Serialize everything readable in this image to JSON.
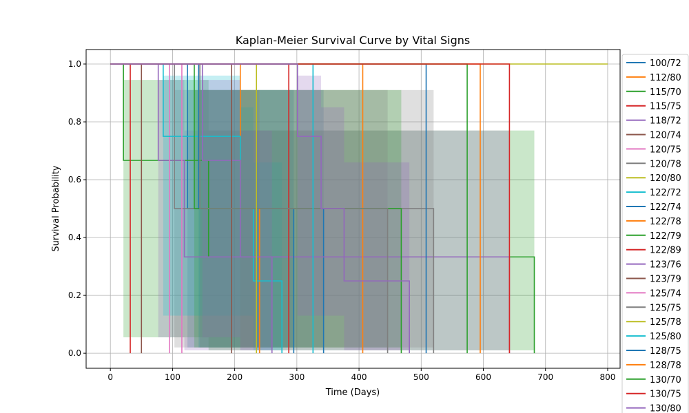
{
  "chart_data": {
    "type": "line",
    "subtype": "kaplan-meier-step",
    "title": "Kaplan-Meier Survival Curve by Vital Signs",
    "xlabel": "Time (Days)",
    "ylabel": "Survival Probability",
    "xlim": [
      -39,
      820
    ],
    "ylim": [
      -0.052,
      1.05
    ],
    "xticks": [
      0,
      100,
      200,
      300,
      400,
      500,
      600,
      700,
      800
    ],
    "yticks": [
      0.0,
      0.2,
      0.4,
      0.6,
      0.8,
      1.0
    ],
    "xtick_labels": [
      "0",
      "100",
      "200",
      "300",
      "400",
      "500",
      "600",
      "700",
      "800"
    ],
    "ytick_labels": [
      "0.0",
      "0.2",
      "0.4",
      "0.6",
      "0.8",
      "1.0"
    ],
    "grid": true,
    "legend_position": "right (overflowing bottom)",
    "confidence_bands": true,
    "colors": [
      "#1f77b4",
      "#ff7f0e",
      "#2ca02c",
      "#d62728",
      "#9467bd",
      "#8c564b",
      "#e377c2",
      "#7f7f7f",
      "#bcbd22",
      "#17becf"
    ],
    "series": [
      {
        "name": "100/72",
        "t": [
          124,
          343
        ],
        "s": [
          0.5,
          0
        ],
        "ci_lower": [
          0.02,
          null
        ],
        "ci_upper": [
          0.91,
          null
        ]
      },
      {
        "name": "112/80",
        "t": [
          209,
          240
        ],
        "s": [
          0.5,
          0
        ],
        "ci_lower": [
          0.02,
          null
        ],
        "ci_upper": [
          0.91,
          null
        ]
      },
      {
        "name": "115/70",
        "t": [
          21,
          158,
          682
        ],
        "s": [
          0.667,
          0.333,
          0
        ],
        "ci_lower": [
          0.055,
          0.01,
          null
        ],
        "ci_upper": [
          0.945,
          0.77,
          null
        ]
      },
      {
        "name": "115/75",
        "t": [
          32
        ],
        "s": [
          0
        ],
        "ci_lower": [
          null
        ],
        "ci_upper": [
          null
        ]
      },
      {
        "name": "118/72",
        "t": [
          77,
          119,
          642
        ],
        "s": [
          0.667,
          0.333,
          0
        ],
        "ci_lower": [
          0.055,
          0.01,
          null
        ],
        "ci_upper": [
          0.945,
          0.77,
          null
        ]
      },
      {
        "name": "120/74",
        "t": [
          50
        ],
        "s": [
          0
        ],
        "ci_lower": [
          null
        ],
        "ci_upper": [
          null
        ]
      },
      {
        "name": "120/75",
        "t": [
          95
        ],
        "s": [
          0
        ],
        "ci_lower": [
          null
        ],
        "ci_upper": [
          null
        ]
      },
      {
        "name": "120/78",
        "t": [
          103,
          520
        ],
        "s": [
          0.5,
          0
        ],
        "ci_lower": [
          0.02,
          null
        ],
        "ci_upper": [
          0.91,
          null
        ]
      },
      {
        "name": "120/80",
        "t": [],
        "s": [],
        "ci_lower": [],
        "ci_upper": [],
        "last_followup": 800
      },
      {
        "name": "122/72",
        "t": [
          85,
          209,
          230,
          276
        ],
        "s": [
          0.75,
          0.5,
          0.25,
          0
        ],
        "ci_lower": [
          0.13,
          0.13,
          0.01,
          null
        ],
        "ci_upper": [
          0.96,
          0.85,
          0.66,
          null
        ]
      },
      {
        "name": "122/74",
        "t": [
          142,
          295
        ],
        "s": [
          0.5,
          0
        ],
        "ci_lower": [
          0.02,
          null
        ],
        "ci_upper": [
          0.91,
          null
        ]
      },
      {
        "name": "122/78",
        "t": [
          406
        ],
        "s": [
          0
        ],
        "ci_lower": [
          null
        ],
        "ci_upper": [
          null
        ]
      },
      {
        "name": "122/79",
        "t": [
          135,
          468
        ],
        "s": [
          0.5,
          0
        ],
        "ci_lower": [
          0.02,
          null
        ],
        "ci_upper": [
          0.91,
          null
        ]
      },
      {
        "name": "122/89",
        "t": [
          287
        ],
        "s": [
          0
        ],
        "ci_lower": [
          null
        ],
        "ci_upper": [
          null
        ]
      },
      {
        "name": "123/76",
        "t": [
          148,
          209,
          260
        ],
        "s": [
          0.667,
          0.333,
          0
        ],
        "ci_lower": [
          0.055,
          0.01,
          null
        ],
        "ci_upper": [
          0.945,
          0.77,
          null
        ]
      },
      {
        "name": "123/79",
        "t": [
          195
        ],
        "s": [
          0
        ],
        "ci_lower": [
          null
        ],
        "ci_upper": [
          null
        ]
      },
      {
        "name": "125/74",
        "t": [
          115
        ],
        "s": [
          0
        ],
        "ci_lower": [
          null
        ],
        "ci_upper": [
          null
        ]
      },
      {
        "name": "125/75",
        "t": [
          144,
          446
        ],
        "s": [
          0.5,
          0
        ],
        "ci_lower": [
          0.02,
          null
        ],
        "ci_upper": [
          0.91,
          null
        ]
      },
      {
        "name": "125/78",
        "t": [
          235
        ],
        "s": [
          0
        ],
        "ci_lower": [
          null
        ],
        "ci_upper": [
          null
        ]
      },
      {
        "name": "125/80",
        "t": [
          326
        ],
        "s": [
          0
        ],
        "ci_lower": [
          null
        ],
        "ci_upper": [
          null
        ]
      },
      {
        "name": "128/75",
        "t": [
          508
        ],
        "s": [
          0
        ],
        "ci_lower": [
          null
        ],
        "ci_upper": [
          null
        ]
      },
      {
        "name": "128/78",
        "t": [
          595
        ],
        "s": [
          0
        ],
        "ci_lower": [
          null
        ],
        "ci_upper": [
          null
        ]
      },
      {
        "name": "130/70",
        "t": [
          574
        ],
        "s": [
          0
        ],
        "ci_lower": [
          null
        ],
        "ci_upper": [
          null
        ]
      },
      {
        "name": "130/75",
        "t": [
          642
        ],
        "s": [
          0
        ],
        "ci_lower": [
          null
        ],
        "ci_upper": [
          null
        ]
      },
      {
        "name": "130/80",
        "t": [
          301,
          339,
          376,
          481
        ],
        "s": [
          0.75,
          0.5,
          0.25,
          0
        ],
        "ci_lower": [
          0.13,
          0.13,
          0.01,
          null
        ],
        "ci_upper": [
          0.96,
          0.85,
          0.66,
          null
        ]
      }
    ]
  }
}
